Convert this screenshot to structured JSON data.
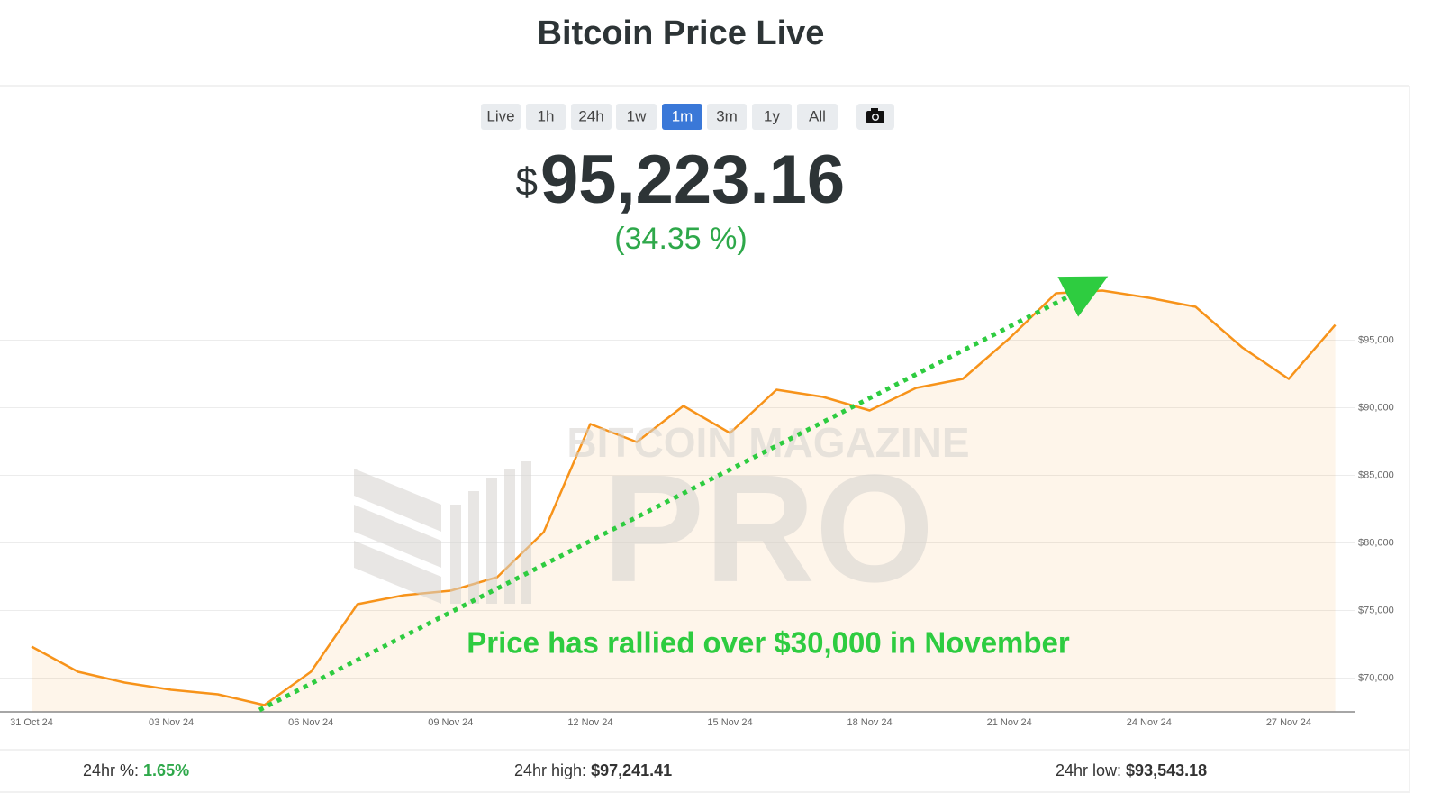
{
  "header": {
    "title": "Bitcoin Price Live"
  },
  "range_buttons": [
    "Live",
    "1h",
    "24h",
    "1w",
    "1m",
    "3m",
    "1y",
    "All"
  ],
  "active_button": "1m",
  "price": {
    "currency": "$",
    "value": "95,223.16",
    "change": "(34.35 %)"
  },
  "watermark": {
    "top": "BITCOIN MAGAZINE",
    "bottom": "PRO"
  },
  "chart_data": {
    "type": "line",
    "annotation": "Price has rallied over $30,000 in November",
    "categories": [
      "31 Oct 24",
      null,
      null,
      "03 Nov 24",
      null,
      null,
      "06 Nov 24",
      null,
      null,
      "09 Nov 24",
      null,
      null,
      "12 Nov 24",
      null,
      null,
      "15 Nov 24",
      null,
      null,
      "18 Nov 24",
      null,
      null,
      "21 Nov 24",
      null,
      null,
      "24 Nov 24",
      null,
      null,
      "27 Nov 24",
      null
    ],
    "series": [
      {
        "color": "#f7931a",
        "values": [
          72333,
          70467,
          69667,
          69133,
          68800,
          68000,
          70467,
          75467,
          76133,
          76467,
          77467,
          80800,
          88800,
          87467,
          90133,
          88133,
          91333,
          90800,
          89800,
          91467,
          92133,
          95133,
          98467,
          98667,
          98133,
          97467,
          94467,
          92133,
          96133
        ]
      }
    ],
    "ylim": [
      67500,
      100500
    ],
    "yticks": [
      {
        "value": 70000,
        "label": "$70,000"
      },
      {
        "value": 75000,
        "label": "$75,000"
      },
      {
        "value": 80000,
        "label": "$80,000"
      },
      {
        "value": 85000,
        "label": "$85,000"
      },
      {
        "value": 90000,
        "label": "$90,000"
      },
      {
        "value": 95000,
        "label": "$95,000"
      }
    ],
    "grid": true
  },
  "footer": [
    {
      "label": "24hr %:",
      "value": "1.65%"
    },
    {
      "label": "24hr high:",
      "value": "$97,241.41"
    },
    {
      "label": "24hr low:",
      "value": "$93,543.18"
    }
  ]
}
